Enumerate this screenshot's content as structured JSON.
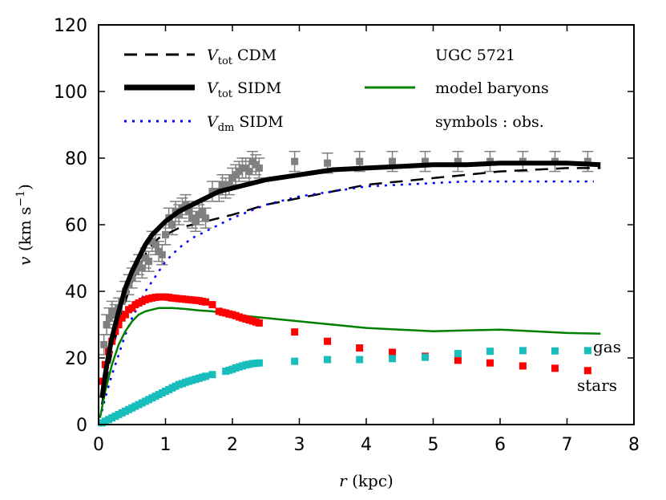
{
  "chart_data": {
    "type": "line",
    "title": "",
    "xlabel": "r (kpc)",
    "ylabel": "v (km s^-1)",
    "xlim": [
      0,
      8
    ],
    "ylim": [
      0,
      120
    ],
    "x_ticks": [
      "0",
      "1",
      "2",
      "3",
      "4",
      "5",
      "6",
      "7",
      "8"
    ],
    "y_ticks": [
      "0",
      "20",
      "40",
      "60",
      "80",
      "100",
      "120"
    ],
    "galaxy": "UGC 5721",
    "legend_labels": {
      "vtot_cdm": {
        "sym": "V",
        "sub": "tot",
        "rest": "CDM"
      },
      "vtot_sidm": {
        "sym": "V",
        "sub": "tot",
        "rest": "SIDM"
      },
      "vdm_sidm": {
        "sym": "V",
        "sub": "dm",
        "rest": "SIDM"
      },
      "baryons": "model baryons",
      "symbols": "symbols : obs."
    },
    "annotations": {
      "gas": "gas",
      "stars": "stars"
    },
    "colors": {
      "gas": "#17bebb",
      "stars": "#ff0000",
      "baryons": "#008000",
      "dm": "#0000ff",
      "obs": "#808080",
      "total": "#000000"
    },
    "series": [
      {
        "name": "Vtot CDM",
        "style": "dashed",
        "x": [
          0.05,
          0.1,
          0.15,
          0.2,
          0.3,
          0.4,
          0.5,
          0.6,
          0.7,
          0.8,
          0.9,
          1.0,
          1.2,
          1.4,
          1.6,
          1.8,
          2.0,
          2.5,
          3.0,
          3.5,
          4.0,
          4.5,
          5.0,
          5.5,
          6.0,
          6.5,
          7.0,
          7.5
        ],
        "y": [
          6,
          12,
          17,
          22,
          30,
          37,
          43,
          47,
          51,
          54,
          56,
          57,
          59,
          60,
          61,
          62,
          63,
          66,
          68,
          70,
          72,
          73,
          74,
          75,
          76,
          76.5,
          77,
          77
        ]
      },
      {
        "name": "Vtot SIDM",
        "style": "thick",
        "x": [
          0.05,
          0.1,
          0.15,
          0.2,
          0.3,
          0.4,
          0.5,
          0.6,
          0.7,
          0.8,
          0.9,
          1.0,
          1.2,
          1.4,
          1.6,
          1.8,
          2.0,
          2.5,
          3.0,
          3.5,
          4.0,
          4.5,
          5.0,
          5.5,
          6.0,
          6.5,
          7.0,
          7.5
        ],
        "y": [
          8,
          15,
          21,
          26,
          34,
          41,
          46,
          50,
          54,
          57,
          59,
          61,
          64,
          66,
          68,
          70,
          71,
          73.5,
          75,
          76.5,
          77,
          77.5,
          78,
          78,
          78.5,
          78.5,
          78.5,
          78
        ]
      },
      {
        "name": "Vdm SIDM",
        "style": "dotted",
        "x": [
          0.05,
          0.1,
          0.2,
          0.3,
          0.4,
          0.5,
          0.6,
          0.7,
          0.8,
          0.9,
          1.0,
          1.2,
          1.4,
          1.6,
          1.8,
          2.0,
          2.5,
          3.0,
          3.5,
          4.0,
          4.5,
          5.0,
          5.5,
          6.0,
          6.5,
          7.0,
          7.4
        ],
        "y": [
          4,
          8,
          15,
          21,
          27,
          32,
          36,
          40,
          43,
          46,
          49,
          53,
          56,
          58,
          60,
          62,
          66,
          68.5,
          70,
          71.5,
          72,
          72.5,
          73,
          73,
          73,
          73,
          73
        ]
      },
      {
        "name": "model baryons",
        "style": "solid",
        "x": [
          0.02,
          0.1,
          0.2,
          0.3,
          0.4,
          0.5,
          0.6,
          0.7,
          0.8,
          0.9,
          1.0,
          1.1,
          1.3,
          1.5,
          1.7,
          2.0,
          2.5,
          3.0,
          3.5,
          4.0,
          4.5,
          5.0,
          5.5,
          6.0,
          6.5,
          7.0,
          7.5
        ],
        "y": [
          2,
          10,
          18,
          24,
          28,
          31,
          33,
          34,
          34.5,
          35,
          35,
          35,
          34.7,
          34.3,
          34,
          33,
          32,
          31,
          30,
          29,
          28.5,
          28,
          28.3,
          28.5,
          28,
          27.5,
          27.3
        ]
      },
      {
        "name": "stars",
        "x": [
          0.05,
          0.1,
          0.15,
          0.2,
          0.25,
          0.3,
          0.35,
          0.4,
          0.45,
          0.5,
          0.55,
          0.6,
          0.65,
          0.7,
          0.75,
          0.8,
          0.85,
          0.9,
          0.95,
          1.0,
          1.05,
          1.1,
          1.15,
          1.2,
          1.25,
          1.3,
          1.35,
          1.4,
          1.45,
          1.5,
          1.55,
          1.6,
          1.7,
          1.8,
          1.85,
          1.9,
          1.95,
          2.0,
          2.05,
          2.1,
          2.15,
          2.2,
          2.25,
          2.3,
          2.35,
          2.4,
          2.93,
          3.42,
          3.9,
          4.39,
          4.88,
          5.37,
          5.85,
          6.34,
          6.82,
          7.31
        ],
        "y": [
          13,
          18,
          22,
          25,
          28,
          30,
          32,
          33,
          34.5,
          35,
          36,
          36.5,
          37,
          37.5,
          37.8,
          38,
          38.2,
          38.3,
          38.3,
          38.3,
          38.2,
          38,
          37.9,
          37.8,
          37.7,
          37.6,
          37.5,
          37.4,
          37.3,
          37.2,
          37,
          36.8,
          36,
          34,
          33.7,
          33.5,
          33.2,
          33,
          32.7,
          32.3,
          32,
          31.7,
          31.4,
          31.1,
          30.8,
          30.5,
          27.8,
          25,
          23,
          21.7,
          20.5,
          19.3,
          18.5,
          17.6,
          16.9,
          16.2
        ]
      },
      {
        "name": "gas",
        "x": [
          0.05,
          0.1,
          0.15,
          0.2,
          0.25,
          0.3,
          0.35,
          0.4,
          0.45,
          0.5,
          0.55,
          0.6,
          0.65,
          0.7,
          0.75,
          0.8,
          0.85,
          0.9,
          0.95,
          1.0,
          1.05,
          1.1,
          1.15,
          1.2,
          1.25,
          1.3,
          1.35,
          1.4,
          1.45,
          1.5,
          1.55,
          1.6,
          1.7,
          1.9,
          1.95,
          2.0,
          2.05,
          2.1,
          2.15,
          2.2,
          2.25,
          2.3,
          2.35,
          2.4,
          2.93,
          3.42,
          3.9,
          4.39,
          4.88,
          5.37,
          5.85,
          6.34,
          6.82,
          7.31
        ],
        "y": [
          0.5,
          1,
          1.5,
          2,
          2.5,
          3,
          3.5,
          4,
          4.5,
          5,
          5.5,
          6,
          6.5,
          7,
          7.5,
          8,
          8.5,
          9,
          9.5,
          10,
          10.5,
          11,
          11.5,
          12,
          12.3,
          12.7,
          13,
          13.3,
          13.6,
          13.9,
          14.2,
          14.5,
          15,
          16,
          16.3,
          16.6,
          17,
          17.3,
          17.6,
          17.9,
          18.1,
          18.3,
          18.4,
          18.5,
          19,
          19.5,
          19.5,
          19.8,
          20.2,
          21.3,
          22,
          22.2,
          22.1,
          22.2
        ]
      },
      {
        "name": "obs",
        "x": [
          0.08,
          0.12,
          0.16,
          0.2,
          0.25,
          0.3,
          0.35,
          0.4,
          0.45,
          0.5,
          0.55,
          0.6,
          0.65,
          0.7,
          0.75,
          0.8,
          0.85,
          0.9,
          0.95,
          1.0,
          1.05,
          1.1,
          1.15,
          1.2,
          1.25,
          1.3,
          1.35,
          1.4,
          1.45,
          1.5,
          1.55,
          1.6,
          1.7,
          1.8,
          1.85,
          1.9,
          1.95,
          2.0,
          2.05,
          2.1,
          2.15,
          2.2,
          2.25,
          2.3,
          2.35,
          2.4,
          2.93,
          3.42,
          3.9,
          4.39,
          4.88,
          5.37,
          5.85,
          6.34,
          6.82,
          7.31
        ],
        "y": [
          24,
          30,
          32,
          34,
          33,
          35,
          37,
          40,
          42,
          44,
          46,
          48,
          47,
          50,
          49,
          55,
          54,
          52,
          51,
          57,
          62,
          60,
          64,
          63,
          65,
          66,
          64,
          62,
          61,
          63,
          64,
          62,
          70,
          70,
          72,
          71,
          72,
          74,
          75,
          76,
          77,
          77,
          76,
          79,
          78,
          77,
          79,
          78.5,
          79,
          79,
          79,
          79,
          79,
          79,
          79,
          79
        ],
        "yerr": [
          3,
          3,
          3,
          3,
          3,
          3,
          3,
          3,
          3,
          3,
          3,
          3,
          3,
          3,
          3,
          3,
          3,
          3,
          3,
          3,
          3,
          3,
          3,
          3,
          3,
          3,
          3,
          3,
          3,
          3,
          3,
          3,
          3,
          3,
          3,
          3,
          3,
          3,
          3,
          3,
          3,
          3,
          3,
          3,
          3,
          3,
          3,
          3,
          3,
          3,
          3,
          3,
          3,
          3,
          3,
          3
        ]
      }
    ]
  }
}
